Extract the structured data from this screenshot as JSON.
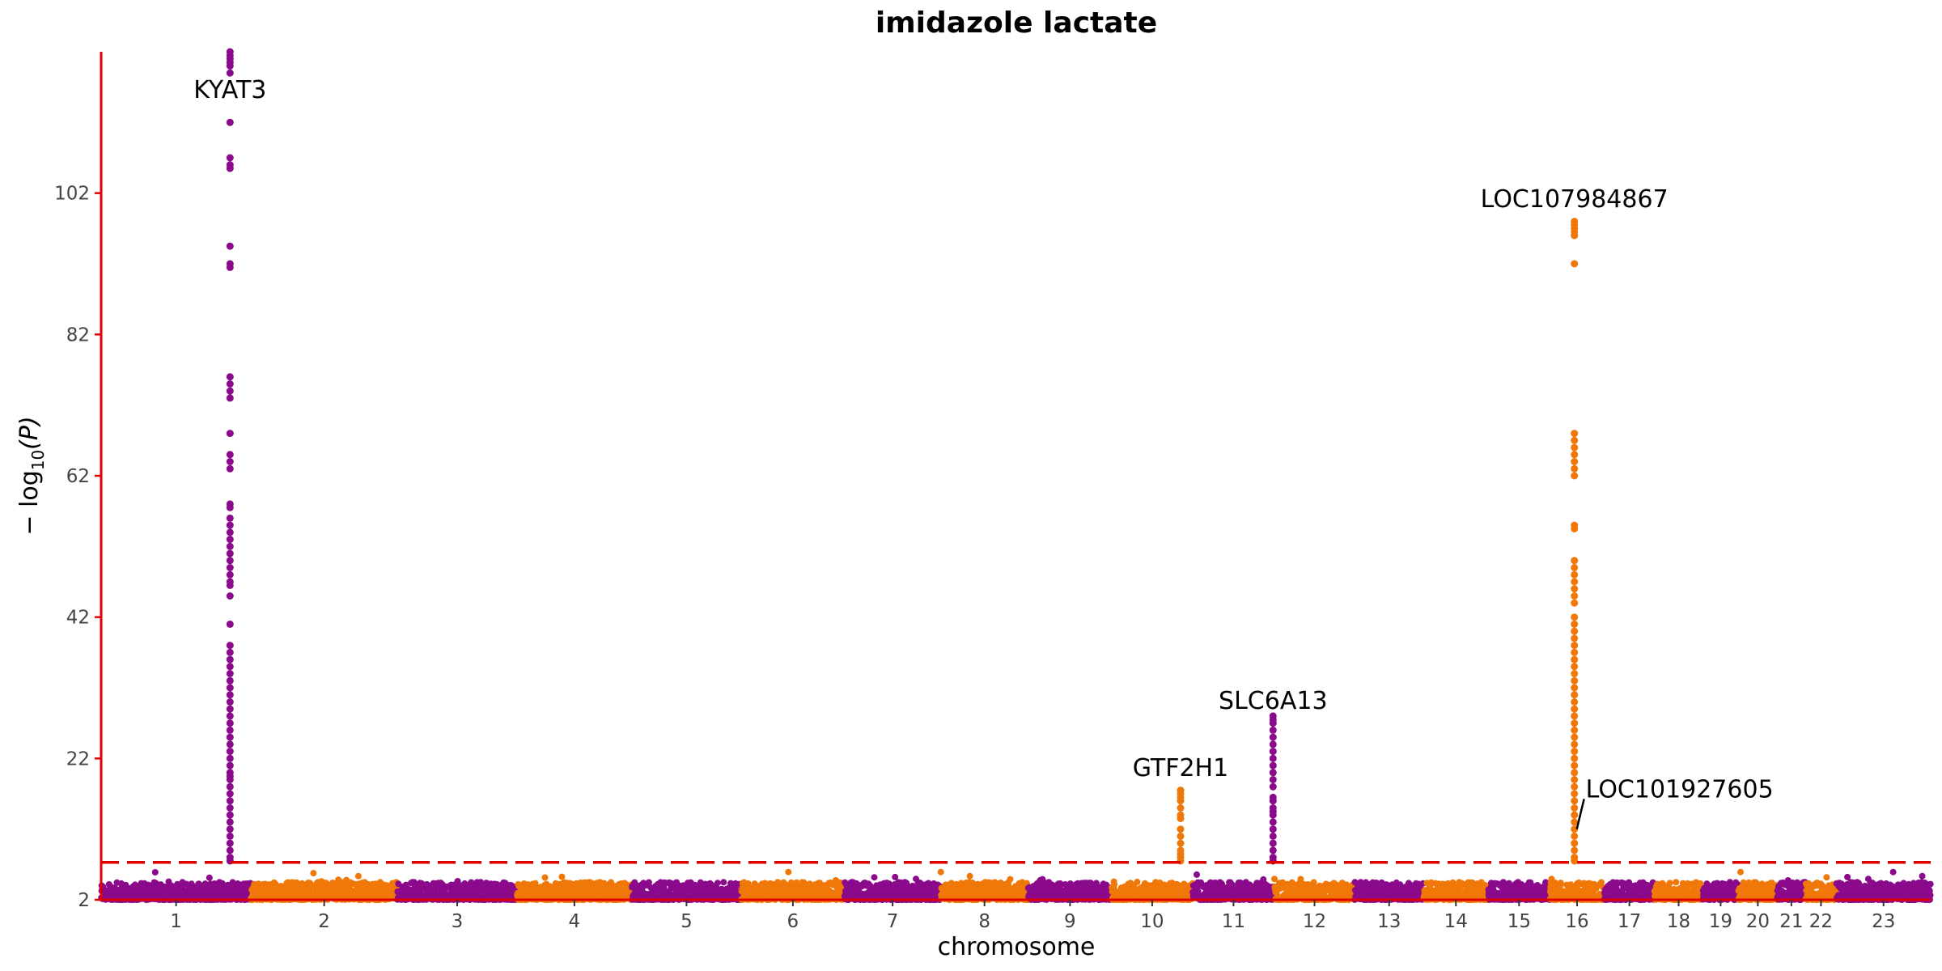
{
  "chart_data": {
    "type": "scatter",
    "title": "imidazole lactate",
    "xlabel": "chromosome",
    "ylabel_main": "− log",
    "ylabel_sub": "10",
    "ylabel_tail": "(P)",
    "ylim": [
      2,
      122
    ],
    "yticks": [
      2,
      22,
      42,
      62,
      82,
      102
    ],
    "chromosomes": [
      "1",
      "2",
      "3",
      "4",
      "5",
      "6",
      "7",
      "8",
      "9",
      "10",
      "11",
      "12",
      "13",
      "14",
      "15",
      "16",
      "17",
      "18",
      "19",
      "20",
      "21",
      "22",
      "23"
    ],
    "chromosome_widths": [
      248,
      242,
      198,
      190,
      181,
      171,
      159,
      145,
      138,
      134,
      135,
      133,
      114,
      107,
      102,
      90,
      83,
      80,
      59,
      64,
      47,
      51,
      156
    ],
    "significance_threshold": 7.3,
    "baseline_range": [
      2,
      4.5
    ],
    "colors": {
      "odd": "#8b0a8b",
      "even": "#f07808",
      "axis": "#e00000",
      "threshold": "#e00000"
    },
    "peaks": [
      {
        "chromosome": "1",
        "position": 0.86,
        "values": [
          122,
          121.5,
          121,
          120.5,
          120,
          119,
          112,
          107,
          106,
          105.5,
          94.5,
          92,
          91.5,
          76,
          75,
          74,
          73,
          68,
          65,
          64,
          63,
          58,
          57.5,
          56,
          55,
          54,
          53,
          52,
          51,
          50,
          49,
          48,
          47,
          46.5,
          45,
          41,
          38,
          37,
          36,
          35,
          34,
          33,
          32,
          31,
          30,
          29,
          28,
          27,
          26,
          25,
          24,
          23,
          22,
          21,
          20,
          19.5,
          19,
          18,
          17,
          16,
          15,
          14,
          13,
          12,
          11,
          10,
          9,
          8,
          7.5
        ]
      },
      {
        "chromosome": "10",
        "position": 0.85,
        "values": [
          17.5,
          17,
          16.5,
          16,
          15,
          14,
          13.5,
          12,
          11,
          10,
          9,
          8.5,
          8,
          7.5
        ]
      },
      {
        "chromosome": "11",
        "position": 0.985,
        "values": [
          28,
          27.5,
          27,
          26,
          25,
          24,
          23,
          22,
          21,
          20,
          19,
          18,
          16.5,
          16,
          15,
          14.5,
          14,
          13,
          12,
          11,
          10,
          9,
          8,
          7.5
        ]
      },
      {
        "chromosome": "16",
        "position": 0.45,
        "values": [
          98,
          97.5,
          97,
          96.5,
          96,
          92,
          68,
          67,
          66,
          65,
          64,
          63,
          62,
          55,
          54.5,
          50,
          49,
          48,
          47,
          46,
          45,
          44,
          42,
          41,
          40,
          39,
          38,
          37,
          36,
          35,
          34,
          33,
          32,
          31,
          30,
          29,
          28,
          27,
          26,
          25,
          24,
          23,
          22,
          21,
          20,
          19,
          18,
          17,
          16,
          15,
          14,
          13,
          12,
          11,
          10,
          9,
          8,
          7.5
        ]
      }
    ],
    "annotations": [
      {
        "text": "KYAT3",
        "chromosome": "1",
        "position": 0.86,
        "y": 115.5
      },
      {
        "text": "LOC107984867",
        "chromosome": "16",
        "position": 0.45,
        "y": 100
      },
      {
        "text": "SLC6A13",
        "chromosome": "11",
        "position": 0.985,
        "y": 29
      },
      {
        "text": "GTF2H1",
        "chromosome": "10",
        "position": 0.85,
        "y": 19.5
      },
      {
        "text": "LOC101927605",
        "chromosome": "16",
        "position": 0.45,
        "y": 16.5,
        "leader_to_y": 12
      }
    ]
  }
}
